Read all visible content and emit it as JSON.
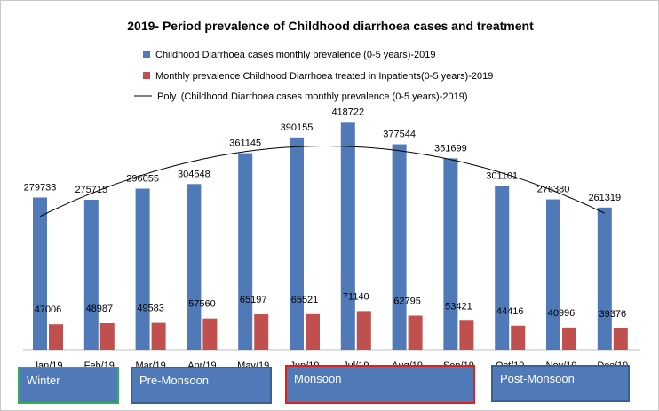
{
  "chart_data": {
    "type": "bar",
    "title": "2019- Period prevalence of Childhood diarrhoea cases and treatment",
    "categories": [
      "Jan/19",
      "Feb/19",
      "Mar/19",
      "Apr/19",
      "May/19",
      "Jun/19",
      "Jul/19",
      "Aug/19",
      "Sep/19",
      "Oct/19",
      "Nov/19",
      "Dec/19"
    ],
    "series": [
      {
        "name": "Childhood Diarrhoea cases monthly prevalence (0-5 years)-2019",
        "color": "#4f79b7",
        "values": [
          279733,
          275715,
          296055,
          304548,
          361145,
          390155,
          418722,
          377544,
          351699,
          301101,
          276380,
          261319
        ]
      },
      {
        "name": "Monthly prevalence Childhood Diarrhoea treated in Inpatients(0-5 years)-2019",
        "color": "#c0504d",
        "values": [
          47006,
          48987,
          49583,
          57560,
          65197,
          65521,
          71140,
          62795,
          53421,
          44416,
          40996,
          39376
        ]
      }
    ],
    "trendline": {
      "name": "Poly. (Childhood Diarrhoea cases monthly prevalence (0-5 years)-2019)",
      "type": "polynomial",
      "color": "#000000"
    },
    "ylim": [
      0,
      460000
    ],
    "grid": false,
    "legend": "top",
    "seasons": [
      {
        "label": "Winter",
        "border": "#2eae4e"
      },
      {
        "label": "Pre-Monsoon",
        "border": "#3a5f94"
      },
      {
        "label": "Monsoon",
        "border": "#e0201b"
      },
      {
        "label": "Post-Monsoon",
        "border": "#3a5f94"
      }
    ]
  }
}
